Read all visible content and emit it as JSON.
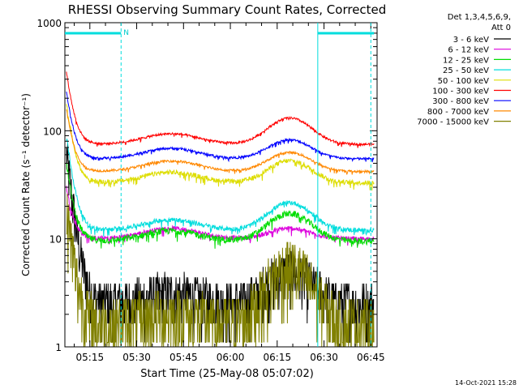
{
  "chart_data": {
    "type": "line",
    "title": "RHESSI Observing Summary Count Rates, Corrected",
    "ylabel": "Corrected Count Rate (s⁻¹ detector⁻¹)",
    "xlabel": "Start Time (25-May-08 05:07:02)",
    "yscale": "log",
    "ylim": [
      1,
      1000
    ],
    "xlim_min": [
      0,
      100
    ],
    "x_tick_labels": [
      "05:15",
      "05:30",
      "05:45",
      "06:00",
      "06:15",
      "06:30",
      "06:45"
    ],
    "x_tick_min": [
      8,
      23,
      38,
      53,
      68,
      83,
      98
    ],
    "y_tick_labels": [
      "1",
      "10",
      "100",
      "1000"
    ],
    "y_tick_values": [
      1,
      10,
      100,
      1000
    ],
    "legend_header": [
      "Det 1,3,4,5,6,9,",
      "Att 0"
    ],
    "footer_date": "14-Oct-2021 15:28",
    "flag_label": "N",
    "night_segments_min": [
      [
        0,
        18
      ],
      [
        81,
        99
      ]
    ],
    "dashed_lines_min": [
      18,
      98
    ],
    "solid_lines_min": [
      81
    ],
    "series": [
      {
        "name": "3 - 6 keV",
        "color": "#000000",
        "start": 60,
        "base": 2.5,
        "bump": 2.0,
        "noise": 0.35
      },
      {
        "name": "6 - 12 keV",
        "color": "#dd00dd",
        "start": 30,
        "base": 10,
        "bump": 1.25,
        "noise": 0.05
      },
      {
        "name": "12 - 25 keV",
        "color": "#00dd00",
        "start": 50,
        "base": 9.5,
        "bump": 1.8,
        "noise": 0.07
      },
      {
        "name": "25 - 50 keV",
        "color": "#00dddd",
        "start": 90,
        "base": 12,
        "bump": 1.8,
        "noise": 0.05
      },
      {
        "name": "50 - 100 keV",
        "color": "#dddd00",
        "start": 180,
        "base": 33,
        "bump": 1.6,
        "noise": 0.05
      },
      {
        "name": "100 - 300 keV",
        "color": "#ff0000",
        "start": 350,
        "base": 75,
        "bump": 1.75,
        "noise": 0.025
      },
      {
        "name": "300 - 800 keV",
        "color": "#0000ff",
        "start": 230,
        "base": 55,
        "bump": 1.5,
        "noise": 0.025
      },
      {
        "name": "800 - 7000 keV",
        "color": "#ff8800",
        "start": 160,
        "base": 42,
        "bump": 1.5,
        "noise": 0.025
      },
      {
        "name": "7000 - 15000 keV",
        "color": "#808000",
        "start": 20,
        "base": 1.6,
        "bump": 3.5,
        "noise": 0.45
      }
    ]
  }
}
